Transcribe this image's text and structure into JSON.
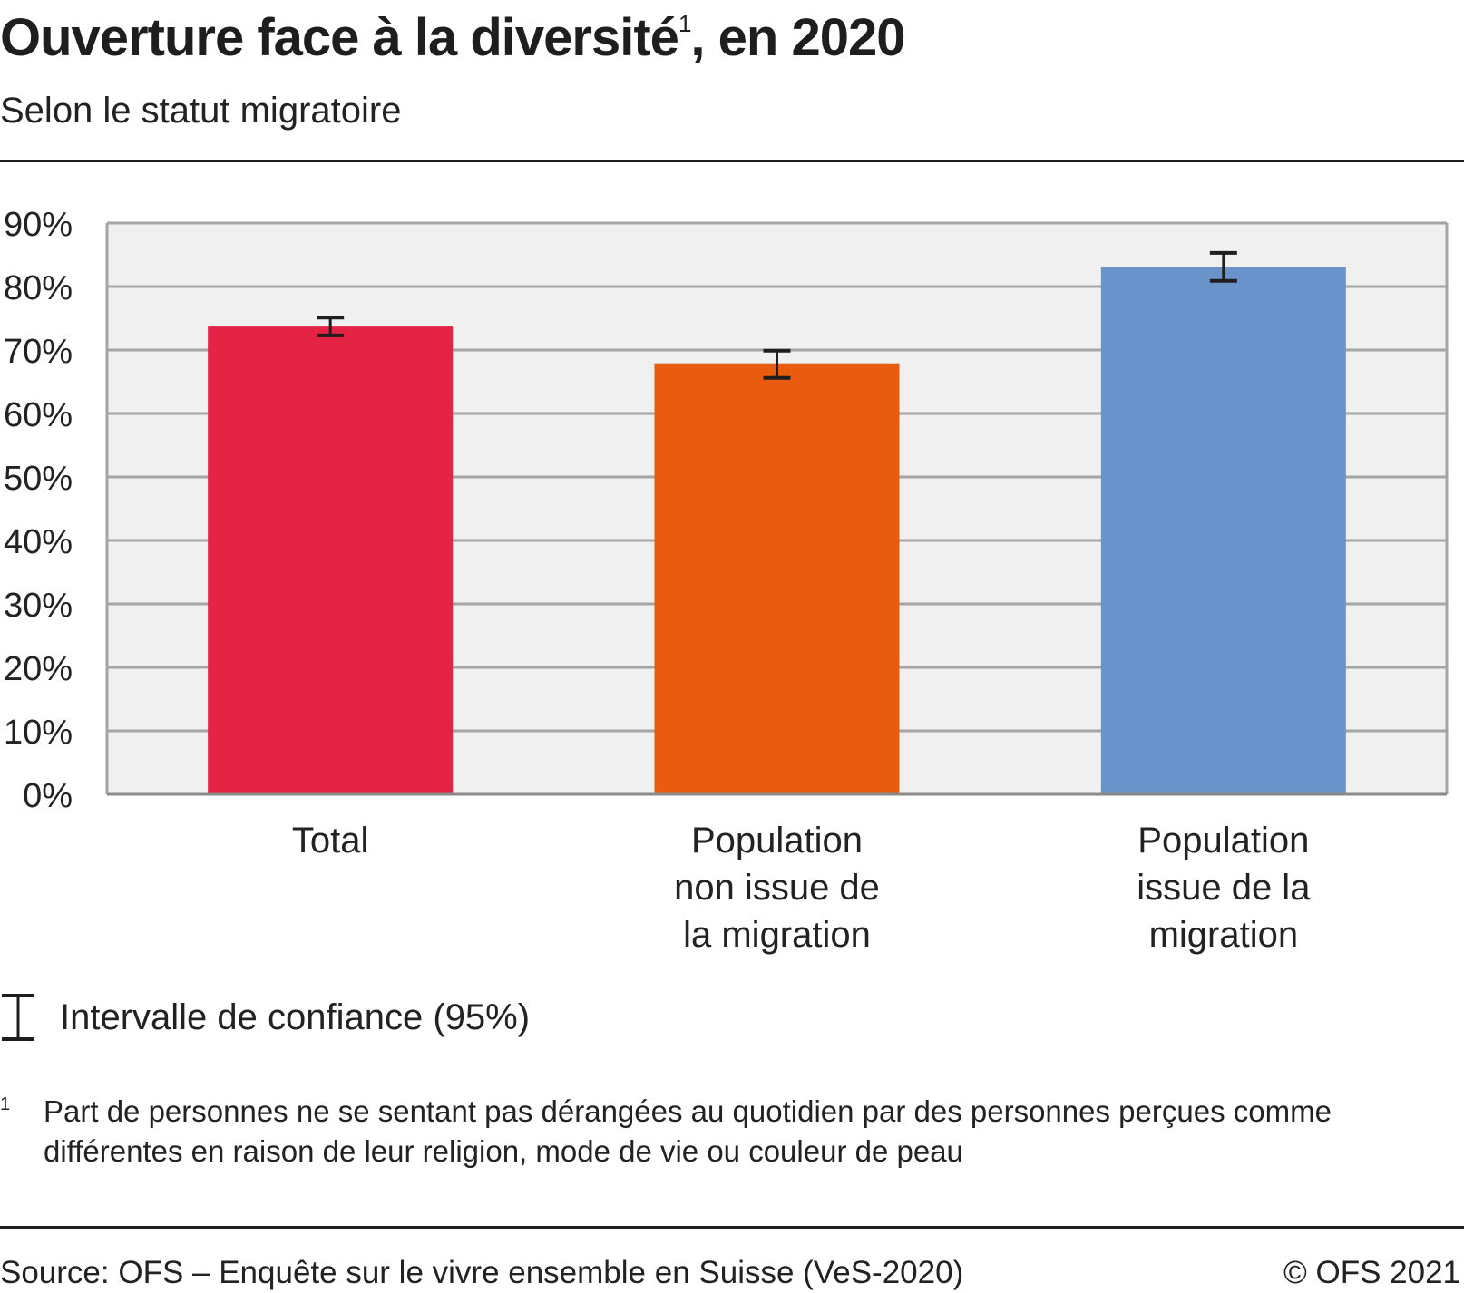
{
  "title": "Ouverture face à la diversité",
  "title_footnote_mark": "1",
  "title_suffix": ", en 2020",
  "subtitle": "Selon le statut migratoire",
  "chart_data": {
    "type": "bar",
    "title": "Ouverture face à la diversité, en 2020",
    "subtitle": "Selon le statut migratoire",
    "xlabel": "",
    "ylabel": "",
    "ylim": [
      0,
      90
    ],
    "yticks": [
      0,
      10,
      20,
      30,
      40,
      50,
      60,
      70,
      80,
      90
    ],
    "ytick_labels": [
      "0%",
      "10%",
      "20%",
      "30%",
      "40%",
      "50%",
      "60%",
      "70%",
      "80%",
      "90%"
    ],
    "grid": true,
    "categories": [
      [
        "Total"
      ],
      [
        "Population",
        "non issue de",
        "la migration"
      ],
      [
        "Population",
        "issue de la",
        "migration"
      ]
    ],
    "values": [
      73.7,
      67.9,
      83.0
    ],
    "ci_low": [
      72.3,
      65.6,
      80.9
    ],
    "ci_high": [
      75.1,
      69.9,
      85.3
    ],
    "colors": [
      "#e52345",
      "#e95c0f",
      "#6a93cb"
    ],
    "plot_background": "#f0f0f0",
    "gridline_color": "#a5a5a5",
    "legend": [
      {
        "symbol": "error-bar",
        "label": "Intervalle de confiance (95%)"
      }
    ],
    "legend_position": "bottom-left"
  },
  "legend_label": "Intervalle de confiance (95%)",
  "footnote": {
    "mark": "1",
    "text": "Part de personnes ne se sentant pas dérangées au quotidien par des personnes perçues comme différentes en raison de leur religion, mode de vie ou couleur de peau"
  },
  "source": "Source: OFS – Enquête sur le vivre ensemble en Suisse (VeS-2020)",
  "copyright": "© OFS 2021"
}
